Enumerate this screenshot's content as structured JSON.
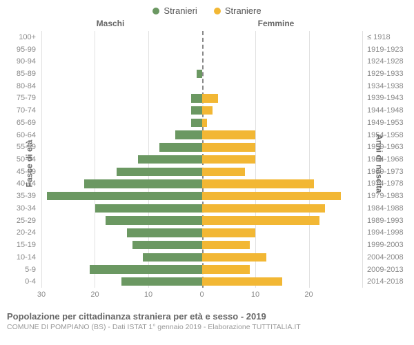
{
  "legend": {
    "male": "Stranieri",
    "female": "Straniere"
  },
  "headers": {
    "left": "Maschi",
    "right": "Femmine"
  },
  "axis_titles": {
    "left": "Fasce di età",
    "right": "Anni di nascita"
  },
  "title": "Popolazione per cittadinanza straniera per età e sesso - 2019",
  "subtitle": "COMUNE DI POMPIANO (BS) - Dati ISTAT 1° gennaio 2019 - Elaborazione TUTTITALIA.IT",
  "colors": {
    "male": "#6b9862",
    "female": "#f2b734",
    "grid": "#e0e0e0",
    "zero": "#888888",
    "background": "#ffffff"
  },
  "chart": {
    "type": "population-pyramid",
    "x_max": 30,
    "x_ticks_left": [
      30,
      20,
      10,
      0
    ],
    "x_ticks_right": [
      0,
      10,
      20
    ],
    "bar_height_ratio": 0.7,
    "rows": [
      {
        "age": "100+",
        "birth": "≤ 1918",
        "m": 0,
        "f": 0
      },
      {
        "age": "95-99",
        "birth": "1919-1923",
        "m": 0,
        "f": 0
      },
      {
        "age": "90-94",
        "birth": "1924-1928",
        "m": 0,
        "f": 0
      },
      {
        "age": "85-89",
        "birth": "1929-1933",
        "m": 1,
        "f": 0
      },
      {
        "age": "80-84",
        "birth": "1934-1938",
        "m": 0,
        "f": 0
      },
      {
        "age": "75-79",
        "birth": "1939-1943",
        "m": 2,
        "f": 3
      },
      {
        "age": "70-74",
        "birth": "1944-1948",
        "m": 2,
        "f": 2
      },
      {
        "age": "65-69",
        "birth": "1949-1953",
        "m": 2,
        "f": 1
      },
      {
        "age": "60-64",
        "birth": "1954-1958",
        "m": 5,
        "f": 10
      },
      {
        "age": "55-59",
        "birth": "1959-1963",
        "m": 8,
        "f": 10
      },
      {
        "age": "50-54",
        "birth": "1964-1968",
        "m": 12,
        "f": 10
      },
      {
        "age": "45-49",
        "birth": "1969-1973",
        "m": 16,
        "f": 8
      },
      {
        "age": "40-44",
        "birth": "1974-1978",
        "m": 22,
        "f": 21
      },
      {
        "age": "35-39",
        "birth": "1979-1983",
        "m": 29,
        "f": 26
      },
      {
        "age": "30-34",
        "birth": "1984-1988",
        "m": 20,
        "f": 23
      },
      {
        "age": "25-29",
        "birth": "1989-1993",
        "m": 18,
        "f": 22
      },
      {
        "age": "20-24",
        "birth": "1994-1998",
        "m": 14,
        "f": 10
      },
      {
        "age": "15-19",
        "birth": "1999-2003",
        "m": 13,
        "f": 9
      },
      {
        "age": "10-14",
        "birth": "2004-2008",
        "m": 11,
        "f": 12
      },
      {
        "age": "5-9",
        "birth": "2009-2013",
        "m": 21,
        "f": 9
      },
      {
        "age": "0-4",
        "birth": "2014-2018",
        "m": 15,
        "f": 15
      }
    ]
  }
}
